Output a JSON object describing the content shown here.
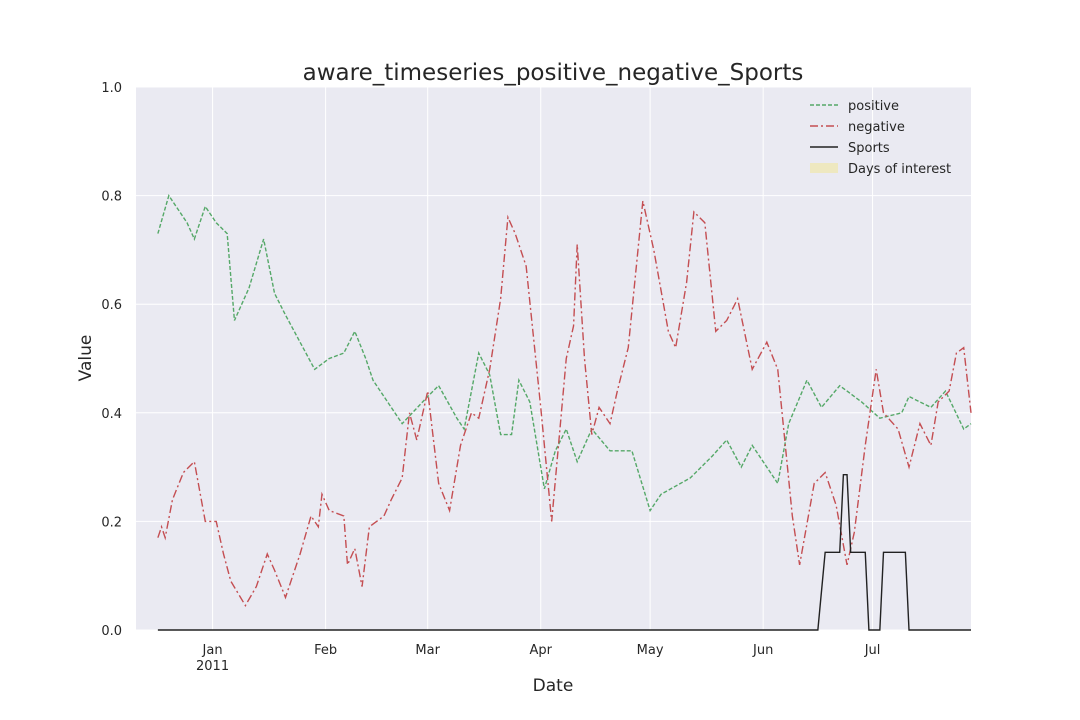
{
  "chart_data": {
    "type": "line",
    "title": "aware_timeseries_positive_negative_Sports",
    "x_label": "Date",
    "y_label": "Value",
    "xlim": [
      -21,
      208
    ],
    "ylim": [
      0,
      1.0
    ],
    "xticks": [
      {
        "value": 0,
        "label": "Jan\n2011"
      },
      {
        "value": 31,
        "label": "Feb"
      },
      {
        "value": 59,
        "label": "Mar"
      },
      {
        "value": 90,
        "label": "Apr"
      },
      {
        "value": 120,
        "label": "May"
      },
      {
        "value": 151,
        "label": "Jun"
      },
      {
        "value": 181,
        "label": "Jul"
      }
    ],
    "yticks": [
      {
        "value": 0,
        "label": "0.0"
      },
      {
        "value": 0.2,
        "label": "0.2"
      },
      {
        "value": 0.4,
        "label": "0.4"
      },
      {
        "value": 0.6,
        "label": "0.6"
      },
      {
        "value": 0.8,
        "label": "0.8"
      },
      {
        "value": 1.0,
        "label": "1.0"
      }
    ],
    "grid": true,
    "legend": "upper right",
    "series": [
      {
        "name": "positive",
        "color": "#55a868",
        "dash": "4,2",
        "x": [
          -15,
          -12,
          -7,
          -5,
          -2,
          1,
          4,
          6,
          10,
          14,
          17,
          20,
          24,
          28,
          32,
          36,
          39,
          42,
          44,
          47,
          52,
          59,
          62,
          67,
          69,
          73,
          76,
          79,
          82,
          84,
          87,
          91,
          94,
          97,
          100,
          104,
          109,
          115,
          120,
          123,
          131,
          137,
          141,
          145,
          148,
          152,
          155,
          158,
          163,
          167,
          172,
          178,
          183,
          189,
          191,
          197,
          201,
          206,
          208
        ],
        "values": [
          0.73,
          0.8,
          0.75,
          0.72,
          0.78,
          0.75,
          0.73,
          0.57,
          0.63,
          0.72,
          0.62,
          0.58,
          0.53,
          0.48,
          0.5,
          0.51,
          0.55,
          0.5,
          0.46,
          0.43,
          0.38,
          0.43,
          0.45,
          0.39,
          0.37,
          0.51,
          0.47,
          0.36,
          0.36,
          0.46,
          0.42,
          0.26,
          0.33,
          0.37,
          0.31,
          0.37,
          0.33,
          0.33,
          0.22,
          0.25,
          0.28,
          0.32,
          0.35,
          0.3,
          0.34,
          0.3,
          0.27,
          0.38,
          0.46,
          0.41,
          0.45,
          0.42,
          0.39,
          0.4,
          0.43,
          0.41,
          0.44,
          0.37,
          0.38
        ]
      },
      {
        "name": "negative",
        "color": "#c44e52",
        "dash": "8,3,2,3",
        "x": [
          -15,
          -14,
          -13,
          -11,
          -8,
          -5,
          -2,
          1,
          3,
          5,
          9,
          12,
          15,
          17,
          20,
          24,
          27,
          29,
          30,
          32,
          36,
          37,
          39,
          41,
          43,
          47,
          49,
          52,
          54,
          56,
          59,
          62,
          65,
          68,
          71,
          73,
          76,
          79,
          81,
          83,
          86,
          90,
          93,
          97,
          99,
          100,
          102,
          104,
          106,
          109,
          111,
          114,
          118,
          121,
          125,
          127,
          130,
          132,
          135,
          138,
          141,
          144,
          148,
          152,
          155,
          159,
          161,
          165,
          168,
          171,
          174,
          176,
          179,
          182,
          184,
          188,
          191,
          194,
          197,
          199,
          202,
          204,
          206,
          208
        ],
        "values": [
          0.17,
          0.19,
          0.17,
          0.24,
          0.29,
          0.31,
          0.2,
          0.2,
          0.14,
          0.09,
          0.045,
          0.08,
          0.14,
          0.11,
          0.06,
          0.14,
          0.21,
          0.19,
          0.25,
          0.22,
          0.21,
          0.12,
          0.15,
          0.08,
          0.19,
          0.21,
          0.24,
          0.28,
          0.4,
          0.35,
          0.44,
          0.27,
          0.22,
          0.34,
          0.4,
          0.39,
          0.48,
          0.61,
          0.76,
          0.73,
          0.67,
          0.41,
          0.2,
          0.5,
          0.56,
          0.71,
          0.5,
          0.36,
          0.41,
          0.38,
          0.44,
          0.52,
          0.79,
          0.7,
          0.55,
          0.52,
          0.64,
          0.77,
          0.75,
          0.55,
          0.57,
          0.61,
          0.48,
          0.53,
          0.48,
          0.21,
          0.12,
          0.27,
          0.29,
          0.23,
          0.12,
          0.18,
          0.34,
          0.48,
          0.4,
          0.37,
          0.3,
          0.38,
          0.34,
          0.42,
          0.44,
          0.51,
          0.52,
          0.4
        ]
      },
      {
        "name": "Sports",
        "color": "#222222",
        "dash": "none",
        "x": [
          -15,
          166,
          168,
          172,
          173,
          174,
          175,
          179,
          180,
          183,
          184,
          190,
          191,
          208
        ],
        "values": [
          0,
          0,
          0.143,
          0.143,
          0.286,
          0.286,
          0.143,
          0.143,
          0,
          0,
          0.143,
          0.143,
          0,
          0
        ]
      }
    ],
    "highlight": {
      "name": "Days of interest",
      "color": "#eee8c0"
    }
  }
}
